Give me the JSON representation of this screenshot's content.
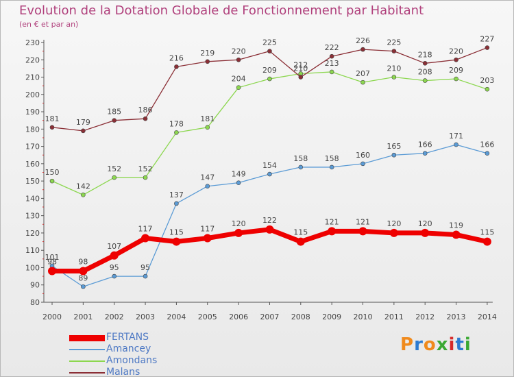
{
  "title": "Evolution de la Dotation Globale de Fonctionnement par Habitant",
  "subtitle": "(en € et par an)",
  "logo_text": [
    "P",
    "r",
    "o",
    "x",
    "i",
    "t",
    "i"
  ],
  "logo_colors": [
    "#f08a1c",
    "#2d7bd1",
    "#f08a1c",
    "#3aa832",
    "#d62a2a",
    "#2d7bd1",
    "#3aa832"
  ],
  "chart_data": {
    "type": "line",
    "x": [
      "2000",
      "2001",
      "2002",
      "2003",
      "2004",
      "2005",
      "2006",
      "2007",
      "2008",
      "2009",
      "2010",
      "2011",
      "2012",
      "2013",
      "2014"
    ],
    "ylim": [
      80,
      230
    ],
    "yticks": [
      80,
      90,
      100,
      110,
      120,
      130,
      140,
      150,
      160,
      170,
      180,
      190,
      200,
      210,
      220,
      230
    ],
    "grid": false,
    "legend_position": "bottom-left",
    "series": [
      {
        "name": "FERTANS",
        "color": "#ee0000",
        "width": "thick",
        "values": [
          98,
          98,
          107,
          117,
          115,
          117,
          120,
          122,
          115,
          121,
          121,
          120,
          120,
          119,
          115
        ]
      },
      {
        "name": "Amancey",
        "color": "#5b9bd5",
        "width": "thin",
        "values": [
          101,
          89,
          95,
          95,
          137,
          147,
          149,
          154,
          158,
          158,
          160,
          165,
          166,
          171,
          166
        ]
      },
      {
        "name": "Amondans",
        "color": "#8cd74f",
        "width": "thin",
        "values": [
          150,
          142,
          152,
          152,
          178,
          181,
          204,
          209,
          212,
          213,
          207,
          210,
          208,
          209,
          203
        ]
      },
      {
        "name": "Malans",
        "color": "#8b2f36",
        "width": "thin",
        "values": [
          181,
          179,
          185,
          186,
          216,
          219,
          220,
          225,
          210,
          222,
          226,
          225,
          218,
          220,
          227
        ]
      }
    ]
  }
}
